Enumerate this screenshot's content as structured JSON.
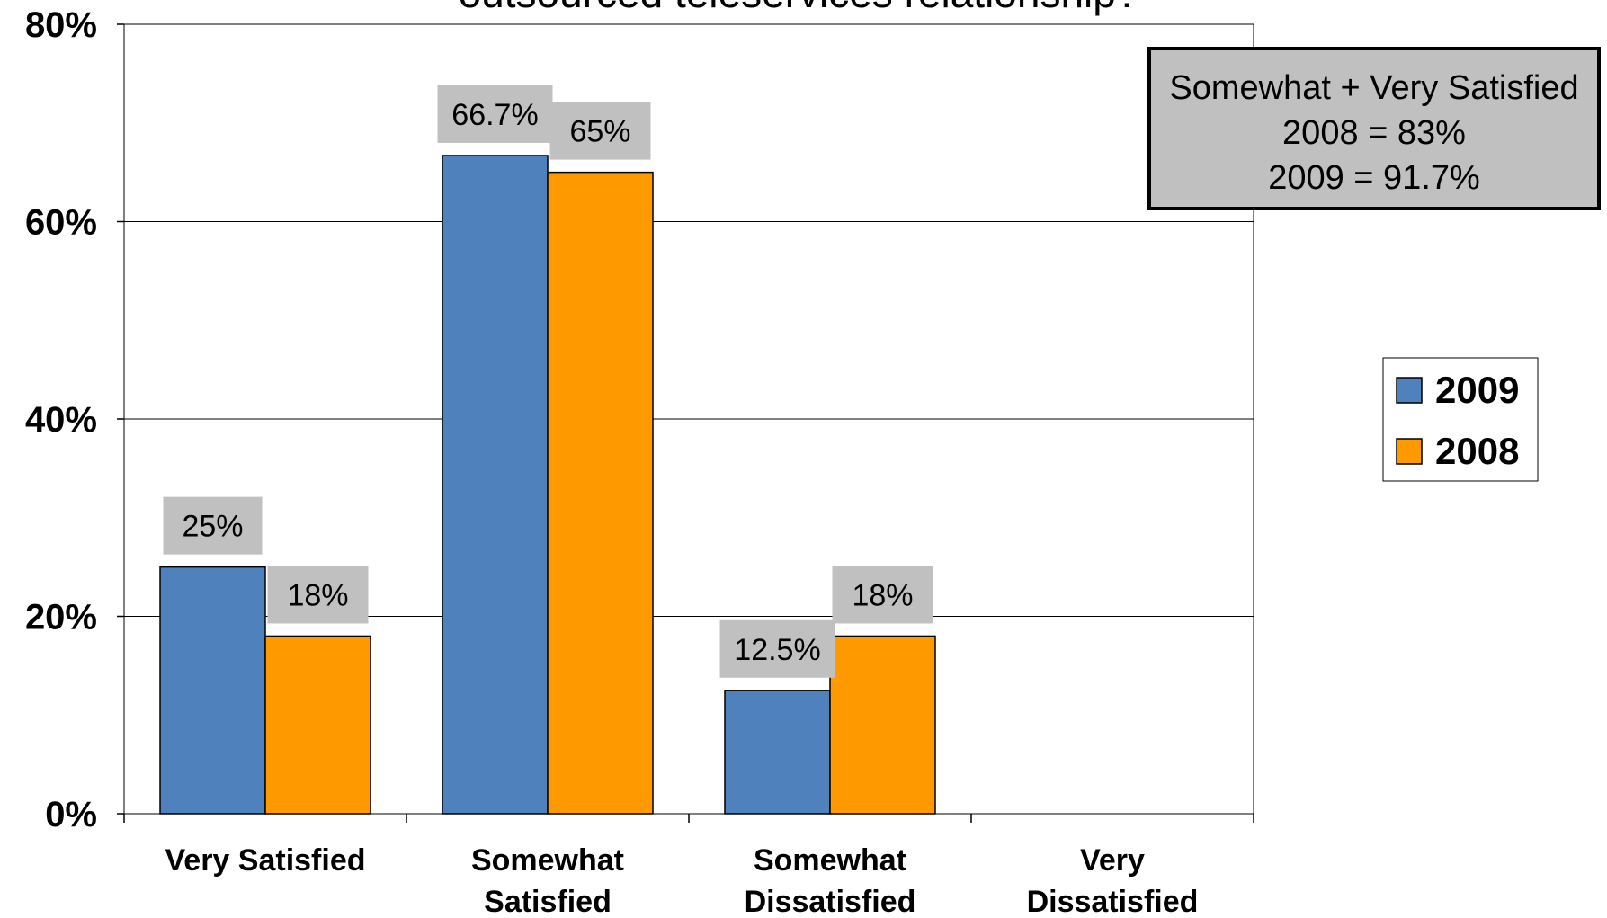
{
  "chart_data": {
    "type": "bar",
    "title": "outsourced teleservices relationship?",
    "categories": [
      [
        "Very Satisfied"
      ],
      [
        "Somewhat",
        "Satisfied"
      ],
      [
        "Somewhat",
        "Dissatisfied"
      ],
      [
        "Very",
        "Dissatisfied"
      ]
    ],
    "series": [
      {
        "name": "2009",
        "color": "#4f81bd",
        "values": [
          25,
          66.7,
          12.5,
          null
        ],
        "labels": [
          "25%",
          "66.7%",
          "12.5%",
          ""
        ]
      },
      {
        "name": "2008",
        "color": "#ff9900",
        "values": [
          18,
          65,
          18,
          null
        ],
        "labels": [
          "18%",
          "65%",
          "18%",
          ""
        ]
      }
    ],
    "ylim": [
      0,
      80
    ],
    "yticks": [
      0,
      20,
      40,
      60,
      80
    ],
    "ytick_labels": [
      "0%",
      "20%",
      "40%",
      "60%",
      "80%"
    ],
    "grid": true,
    "legend": {
      "position": "right",
      "entries": [
        "2009",
        "2008"
      ]
    },
    "annotation": {
      "lines": [
        "Somewhat + Very Satisfied",
        "2008 = 83%",
        "2009 = 91.7%"
      ]
    }
  }
}
